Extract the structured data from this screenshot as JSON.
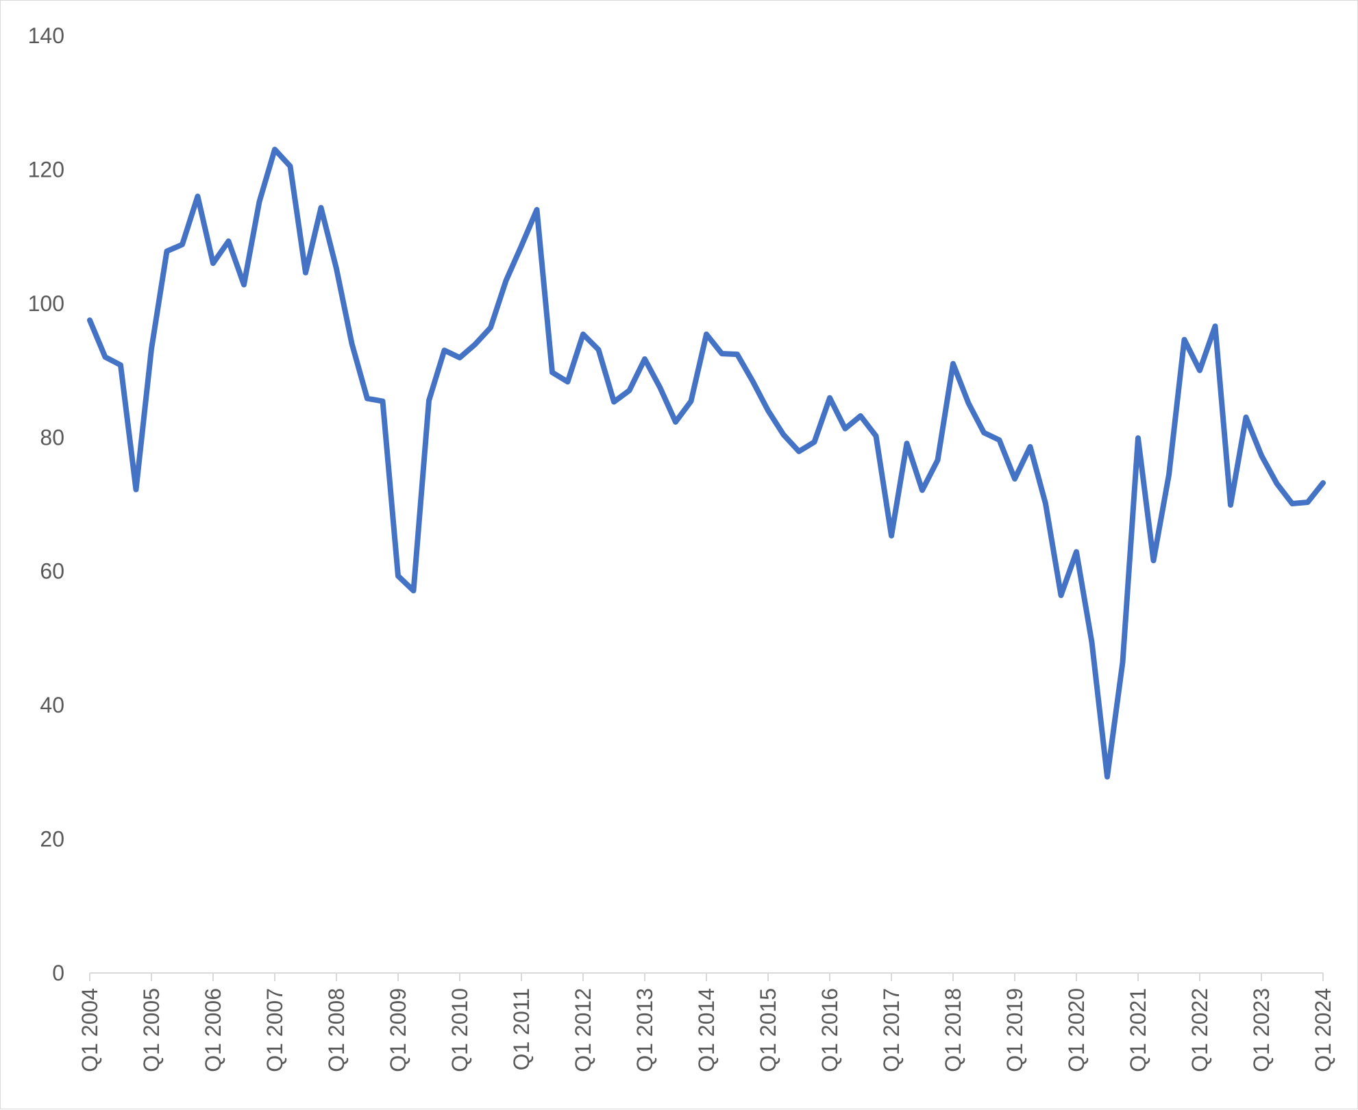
{
  "chart_data": {
    "type": "line",
    "title": "",
    "xlabel": "",
    "ylabel": "",
    "ylim": [
      0,
      140
    ],
    "yticks": [
      0,
      20,
      40,
      60,
      80,
      100,
      120,
      140
    ],
    "x_tick_labels": [
      "Q1 2004",
      "Q1 2005",
      "Q1 2006",
      "Q1 2007",
      "Q1 2008",
      "Q1 2009",
      "Q1 2010",
      "Q1 2011",
      "Q1 2012",
      "Q1 2013",
      "Q1 2014",
      "Q1 2015",
      "Q1 2016",
      "Q1 2017",
      "Q1 2018",
      "Q1 2019",
      "Q1 2020",
      "Q1 2021",
      "Q1 2022",
      "Q1 2023",
      "Q1 2024"
    ],
    "grid": false,
    "legend": "none",
    "line_color": "#4472C4",
    "axis_color": "#d9d9d9",
    "x": [
      "Q1 2004",
      "Q2 2004",
      "Q3 2004",
      "Q4 2004",
      "Q1 2005",
      "Q2 2005",
      "Q3 2005",
      "Q4 2005",
      "Q1 2006",
      "Q2 2006",
      "Q3 2006",
      "Q4 2006",
      "Q1 2007",
      "Q2 2007",
      "Q3 2007",
      "Q4 2007",
      "Q1 2008",
      "Q2 2008",
      "Q3 2008",
      "Q4 2008",
      "Q1 2009",
      "Q2 2009",
      "Q3 2009",
      "Q4 2009",
      "Q1 2010",
      "Q2 2010",
      "Q3 2010",
      "Q4 2010",
      "Q1 2011",
      "Q2 2011",
      "Q3 2011",
      "Q4 2011",
      "Q1 2012",
      "Q2 2012",
      "Q3 2012",
      "Q4 2012",
      "Q1 2013",
      "Q2 2013",
      "Q3 2013",
      "Q4 2013",
      "Q1 2014",
      "Q2 2014",
      "Q3 2014",
      "Q4 2014",
      "Q1 2015",
      "Q2 2015",
      "Q3 2015",
      "Q4 2015",
      "Q1 2016",
      "Q2 2016",
      "Q3 2016",
      "Q4 2016",
      "Q1 2017",
      "Q2 2017",
      "Q3 2017",
      "Q4 2017",
      "Q1 2018",
      "Q2 2018",
      "Q3 2018",
      "Q4 2018",
      "Q1 2019",
      "Q2 2019",
      "Q3 2019",
      "Q4 2019",
      "Q1 2020",
      "Q2 2020",
      "Q3 2020",
      "Q4 2020",
      "Q1 2021",
      "Q2 2021",
      "Q3 2021",
      "Q4 2021",
      "Q1 2022",
      "Q2 2022",
      "Q3 2022",
      "Q4 2022",
      "Q1 2023",
      "Q2 2023",
      "Q3 2023",
      "Q4 2023",
      "Q1 2024"
    ],
    "series": [
      {
        "values": [
          97.5,
          92,
          90.8,
          72.2,
          93.2,
          107.8,
          108.8,
          116,
          106,
          109.3,
          102.8,
          115.2,
          123,
          120.5,
          104.6,
          114.3,
          105.2,
          94,
          85.8,
          85.4,
          59.3,
          57.1,
          85.5,
          93,
          91.9,
          93.9,
          96.4,
          103.4,
          108.6,
          114,
          89.7,
          88.3,
          95.4,
          93.1,
          85.3,
          87,
          91.7,
          87.4,
          82.3,
          85.4,
          95.4,
          92.5,
          92.4,
          88.4,
          84,
          80.4,
          77.9,
          79.3,
          85.9,
          81.3,
          83.2,
          80.2,
          65.3,
          79.1,
          72.1,
          76.6,
          91,
          85.1,
          80.7,
          79.6,
          73.8,
          78.6,
          70.1,
          56.4,
          62.9,
          49.4,
          29.3,
          46.4,
          79.9,
          61.6,
          74.4,
          94.6,
          90,
          96.6,
          69.9,
          83,
          77.3,
          73.1,
          70.1,
          70.3,
          73.2
        ]
      }
    ]
  }
}
